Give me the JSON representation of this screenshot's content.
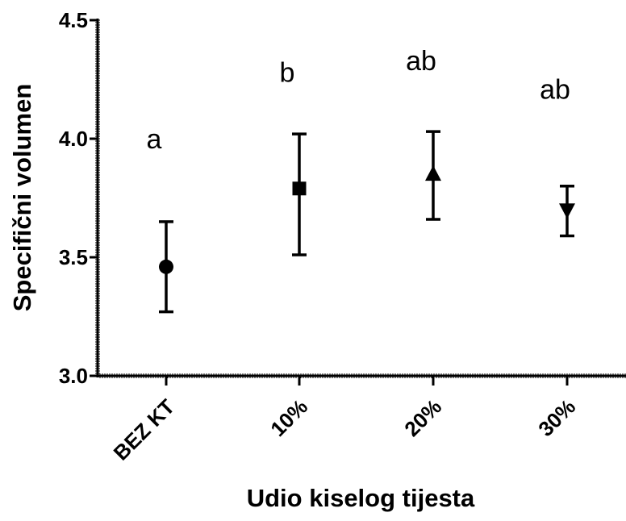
{
  "chart_data": {
    "type": "scatter",
    "xlabel": "Udio kiselog tijesta",
    "ylabel": "Specifični volumen",
    "ylim": [
      3.0,
      4.5
    ],
    "yticks": [
      "3.0",
      "3.5",
      "4.0",
      "4.5"
    ],
    "grid": false,
    "categories": [
      "BEZ KT",
      "10%",
      "20%",
      "30%"
    ],
    "markers": [
      "circle",
      "square",
      "triangle-up",
      "triangle-down"
    ],
    "means": [
      3.46,
      3.79,
      3.85,
      3.7
    ],
    "error_low": [
      3.27,
      3.51,
      3.66,
      3.59
    ],
    "error_high": [
      3.65,
      4.02,
      4.03,
      3.8
    ],
    "letters": [
      "a",
      "b",
      "ab",
      "ab"
    ],
    "letter_y": [
      4.0,
      4.28,
      4.33,
      4.21
    ]
  }
}
